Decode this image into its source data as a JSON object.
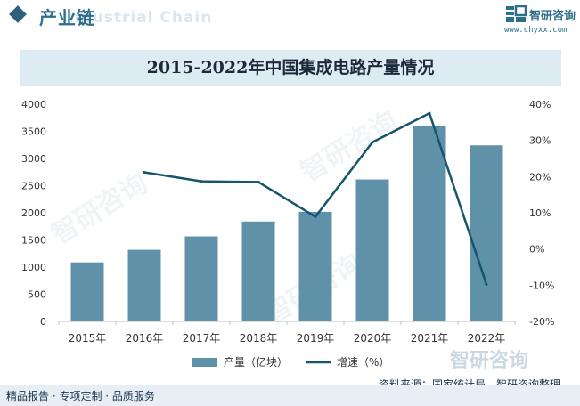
{
  "header": {
    "section_title": "产业链",
    "section_subtitle": "Industrial Chain",
    "logo_name": "智研咨询",
    "logo_url": "www.chyxx.com"
  },
  "watermark": {
    "text": "智研咨询"
  },
  "footer": {
    "left_text": "精品报告 · 专项定制 · 品质服务",
    "source_text": "资料来源：国家统计局、智研咨询整理"
  },
  "chart_data": {
    "type": "bar",
    "title": "2015-2022年中国集成电路产量情况",
    "categories": [
      "2015年",
      "2016年",
      "2017年",
      "2018年",
      "2019年",
      "2020年",
      "2021年",
      "2022年"
    ],
    "series": [
      {
        "name": "产量（亿块）",
        "type": "bar",
        "axis": "left",
        "values": [
          1087,
          1318,
          1565,
          1840,
          2018,
          2614,
          3594,
          3242
        ]
      },
      {
        "name": "增速（%）",
        "type": "line",
        "axis": "right",
        "values": [
          null,
          21.2,
          18.7,
          18.5,
          8.9,
          29.5,
          37.5,
          -9.8
        ]
      }
    ],
    "y_left": {
      "min": 0,
      "max": 4000,
      "ticks": [
        "0",
        "500",
        "1000",
        "1500",
        "2000",
        "2500",
        "3000",
        "3500",
        "4000"
      ]
    },
    "y_right": {
      "min": -20,
      "max": 40,
      "ticks": [
        "-20%",
        "-10%",
        "0%",
        "10%",
        "20%",
        "30%",
        "40%"
      ]
    },
    "grid": false,
    "legend_position": "bottom",
    "colors": {
      "bar": "#5f92a8",
      "line": "#17546d",
      "axis": "#bfbfbf"
    }
  }
}
